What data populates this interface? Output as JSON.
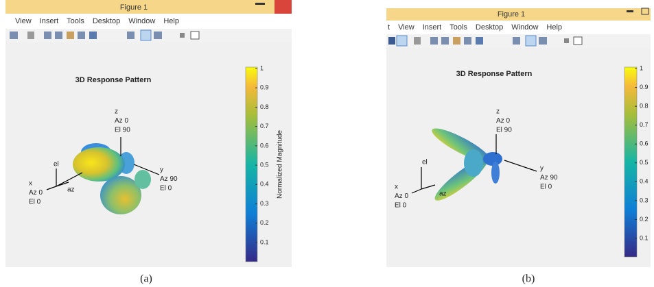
{
  "panels": [
    {
      "window_title": "Figure 1",
      "menu": [
        "View",
        "Insert",
        "Tools",
        "Desktop",
        "Window",
        "Help"
      ],
      "plot_title": "3D Response Pattern",
      "axes": {
        "z": [
          "z",
          "Az 0",
          "El 90"
        ],
        "y": [
          "y",
          "Az 90",
          "El 0"
        ],
        "x": [
          "x",
          "Az 0",
          "El 0"
        ],
        "el": "el",
        "az": "az"
      },
      "colorbar": {
        "ticks": [
          0.1,
          0.2,
          0.3,
          0.4,
          0.5,
          0.6,
          0.7,
          0.8,
          0.9,
          1
        ],
        "label": "Normalized Magnitude"
      },
      "caption": "(a)"
    },
    {
      "window_title": "Figure 1",
      "menu": [
        "t",
        "View",
        "Insert",
        "Tools",
        "Desktop",
        "Window",
        "Help"
      ],
      "plot_title": "3D Response Pattern",
      "axes": {
        "z": [
          "z",
          "Az 0",
          "El 90"
        ],
        "y": [
          "y",
          "Az 90",
          "El 0"
        ],
        "x": [
          "x",
          "Az 0",
          "El 0"
        ],
        "el": "el",
        "az": "az"
      },
      "colorbar": {
        "ticks": [
          0.1,
          0.2,
          0.3,
          0.4,
          0.5,
          0.6,
          0.7,
          0.8,
          0.9,
          1
        ]
      },
      "caption": "(b)"
    }
  ]
}
